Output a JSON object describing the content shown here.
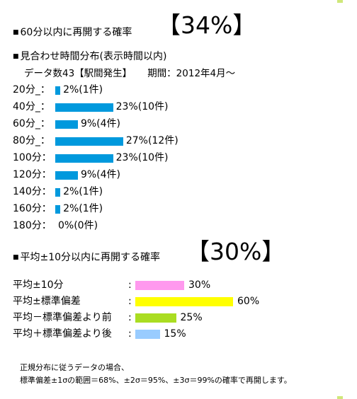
{
  "section1": {
    "square": "■",
    "heading": "60分以内に再開する確率",
    "percent": "【34%】"
  },
  "section2": {
    "square": "■",
    "heading": "見合わせ時間分布(表示時間以内)",
    "data_count": "データ数43【駅間発生】",
    "period": "期間：2012年4月～",
    "bar_color": "#0099dd",
    "rows": [
      {
        "label": "20分_：",
        "value": 2,
        "text": "2%(1件)"
      },
      {
        "label": "40分_：",
        "value": 23,
        "text": "23%(10件)"
      },
      {
        "label": "60分_：",
        "value": 9,
        "text": "9%(4件)"
      },
      {
        "label": "80分_：",
        "value": 27,
        "text": "27%(12件)"
      },
      {
        "label": "100分：",
        "value": 23,
        "text": "23%(10件)"
      },
      {
        "label": "120分：",
        "value": 9,
        "text": "9%(4件)"
      },
      {
        "label": "140分：",
        "value": 2,
        "text": "2%(1件)"
      },
      {
        "label": "160分：",
        "value": 2,
        "text": "2%(1件)"
      },
      {
        "label": "180分：",
        "value": 0,
        "text": "0%(0件)"
      }
    ]
  },
  "section3": {
    "square": "■",
    "heading": "平均±10分以内に再開する確率",
    "percent": "【30%】",
    "colon": ":",
    "rows": [
      {
        "label": "平均±10分",
        "value": 30,
        "text": "30%",
        "color": "#ff99ee"
      },
      {
        "label": "平均±標準偏差",
        "value": 60,
        "text": "60%",
        "color": "#ffff00"
      },
      {
        "label": "平均－標準偏差より前",
        "value": 25,
        "text": "25%",
        "color": "#aadd22"
      },
      {
        "label": "平均＋標準偏差より後",
        "value": 15,
        "text": "15%",
        "color": "#99ccff"
      }
    ]
  },
  "notes": {
    "line1": "正規分布に従うデータの場合、",
    "line2": "標準偏差±1σの範囲＝68%、±2σ＝95%、±3σ＝99%の確率で再開します。"
  },
  "chart_data": [
    {
      "type": "bar",
      "title": "見合わせ時間分布(表示時間以内)",
      "categories": [
        "20分",
        "40分",
        "60分",
        "80分",
        "100分",
        "120分",
        "140分",
        "160分",
        "180分"
      ],
      "values": [
        2,
        23,
        9,
        27,
        23,
        9,
        2,
        2,
        0
      ],
      "counts": [
        1,
        10,
        4,
        12,
        10,
        4,
        1,
        1,
        0
      ],
      "orientation": "horizontal"
    },
    {
      "type": "bar",
      "title": "平均±10分以内に再開する確率",
      "categories": [
        "平均±10分",
        "平均±標準偏差",
        "平均－標準偏差より前",
        "平均＋標準偏差より後"
      ],
      "values": [
        30,
        60,
        25,
        15
      ],
      "orientation": "horizontal"
    }
  ]
}
